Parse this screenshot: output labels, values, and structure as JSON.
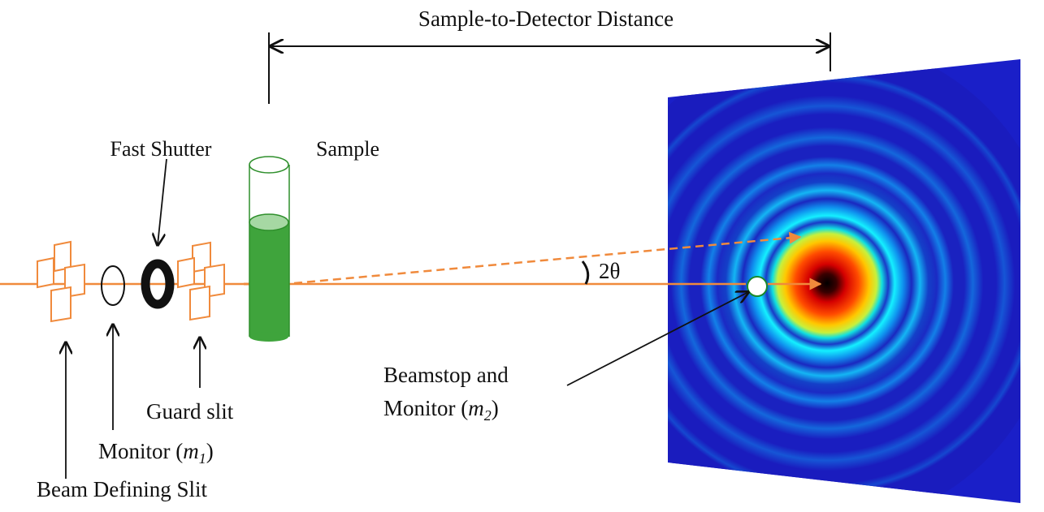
{
  "labels": {
    "distance": "Sample-to-Detector Distance",
    "fast_shutter": "Fast Shutter",
    "sample": "Sample",
    "angle": "2θ",
    "beamstop_line1": "Beamstop and",
    "beamstop_line2_prefix": "Monitor (",
    "beamstop_var": "m",
    "beamstop_sub": "2",
    "beamstop_suffix": ")",
    "guard_slit": "Guard slit",
    "monitor1_prefix": "Monitor (",
    "monitor1_var": "m",
    "monitor1_sub": "1",
    "monitor1_suffix": ")",
    "beam_defining_slit": "Beam Defining Slit"
  },
  "colors": {
    "beam": "#f08a3c",
    "sample_liquid": "#3fa43c",
    "sample_outline": "#2f8f2c",
    "detector_background": "#1a1fc8",
    "ink": "#111111"
  }
}
